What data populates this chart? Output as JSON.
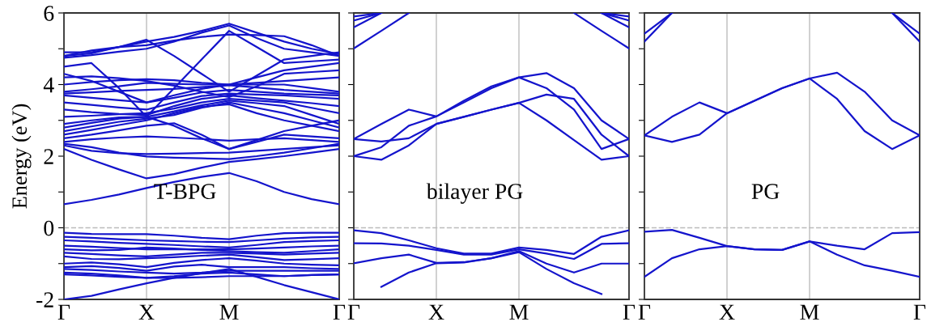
{
  "chart_data": [
    {
      "type": "line",
      "ylabel": "Energy (eV)",
      "annotations": [
        "T-BPG"
      ],
      "grid": "x",
      "marker": "none",
      "line_style": "solid",
      "categories": [
        "Γ",
        null,
        null,
        "X",
        null,
        null,
        "M",
        null,
        null,
        null,
        "Γ"
      ],
      "ylim": [
        -2,
        6
      ],
      "yticks": [
        -2,
        {
          "value": -1,
          "label": null
        },
        0,
        {
          "value": 1,
          "label": null
        },
        2,
        {
          "value": 3,
          "label": null
        },
        4,
        {
          "value": 5,
          "label": null
        },
        6
      ],
      "ref_lines": [
        {
          "axis": "y",
          "value": 0,
          "label": null,
          "color": "#bbbbbb",
          "line_style": "dashed"
        }
      ],
      "series": [
        {
          "color": "#1414cc",
          "values": [
            0.66,
            0.78,
            0.93,
            1.11,
            1.28,
            1.42,
            1.53,
            1.3,
            1.0,
            0.8,
            0.66
          ]
        },
        {
          "color": "#1414cc",
          "values": [
            2.2,
            1.9,
            1.63,
            1.38,
            1.5,
            1.68,
            1.84,
            1.92,
            2.0,
            2.1,
            2.2
          ]
        },
        {
          "color": "#1414cc",
          "values": [
            2.3,
            2.15,
            2.08,
            2.06,
            2.07,
            2.09,
            2.1,
            2.15,
            2.2,
            2.25,
            2.3
          ]
        },
        {
          "color": "#1414cc",
          "values": [
            2.35,
            2.25,
            2.1,
            1.99,
            1.96,
            1.94,
            1.92,
            2.0,
            2.1,
            2.22,
            2.35
          ]
        },
        {
          "color": "#1414cc",
          "values": [
            2.4,
            2.47,
            2.52,
            2.55,
            2.52,
            2.48,
            2.43,
            2.47,
            2.5,
            2.45,
            2.4
          ]
        },
        {
          "color": "#1414cc",
          "values": [
            2.5,
            2.6,
            2.72,
            2.85,
            2.92,
            2.6,
            2.2,
            2.4,
            2.6,
            2.55,
            2.5
          ]
        },
        {
          "color": "#1414cc",
          "values": [
            2.6,
            2.73,
            2.87,
            3.0,
            3.2,
            3.38,
            3.45,
            3.2,
            3.0,
            2.85,
            2.7
          ]
        },
        {
          "color": "#1414cc",
          "values": [
            2.7,
            2.83,
            2.96,
            3.05,
            3.15,
            3.35,
            3.5,
            3.35,
            3.2,
            3.0,
            2.8
          ]
        },
        {
          "color": "#1414cc",
          "values": [
            2.8,
            2.93,
            3.05,
            3.1,
            3.25,
            3.42,
            3.55,
            3.48,
            3.4,
            3.15,
            2.9
          ]
        },
        {
          "color": "#1414cc",
          "values": [
            2.9,
            3.0,
            3.08,
            3.1,
            2.85,
            2.5,
            2.2,
            2.45,
            2.7,
            2.85,
            3.0
          ]
        },
        {
          "color": "#1414cc",
          "values": [
            3.1,
            3.13,
            3.17,
            3.2,
            3.33,
            3.5,
            3.6,
            3.55,
            3.5,
            3.35,
            3.2
          ]
        },
        {
          "color": "#1414cc",
          "values": [
            3.3,
            3.23,
            3.18,
            3.15,
            3.4,
            3.6,
            3.7,
            3.62,
            3.55,
            3.48,
            3.4
          ]
        },
        {
          "color": "#1414cc",
          "values": [
            3.5,
            3.43,
            3.36,
            3.3,
            3.5,
            3.68,
            3.75,
            3.72,
            3.7,
            3.65,
            3.6
          ]
        },
        {
          "color": "#1414cc",
          "values": [
            3.7,
            3.63,
            3.56,
            3.5,
            3.63,
            3.78,
            3.85,
            3.8,
            3.75,
            3.72,
            3.7
          ]
        },
        {
          "color": "#1414cc",
          "values": [
            3.75,
            3.78,
            3.82,
            3.85,
            3.88,
            3.93,
            3.98,
            3.92,
            3.85,
            3.8,
            3.75
          ]
        },
        {
          "color": "#1414cc",
          "values": [
            3.8,
            3.87,
            3.95,
            4.05,
            4.02,
            4.0,
            4.0,
            4.0,
            4.0,
            3.9,
            3.8
          ]
        },
        {
          "color": "#1414cc",
          "values": [
            4.0,
            4.07,
            4.12,
            4.15,
            4.12,
            4.05,
            4.0,
            4.05,
            4.1,
            4.15,
            4.2
          ]
        },
        {
          "color": "#1414cc",
          "values": [
            4.2,
            4.23,
            4.18,
            4.1,
            3.97,
            3.8,
            3.65,
            3.95,
            4.3,
            4.35,
            4.4
          ]
        },
        {
          "color": "#1414cc",
          "values": [
            4.3,
            4.1,
            3.8,
            3.5,
            3.7,
            3.88,
            4.0,
            4.2,
            4.4,
            4.5,
            4.6
          ]
        },
        {
          "color": "#1414cc",
          "values": [
            4.5,
            4.6,
            3.9,
            3.1,
            3.9,
            4.7,
            5.5,
            5.05,
            4.6,
            4.65,
            4.7
          ]
        },
        {
          "color": "#1414cc",
          "values": [
            4.75,
            4.82,
            4.92,
            5.0,
            5.2,
            5.45,
            5.65,
            5.3,
            5.0,
            4.9,
            4.8
          ]
        },
        {
          "color": "#1414cc",
          "values": [
            4.8,
            4.87,
            5.05,
            5.2,
            5.33,
            5.5,
            5.7,
            5.45,
            5.2,
            5.0,
            4.85
          ]
        },
        {
          "color": "#1414cc",
          "values": [
            4.9,
            4.9,
            5.05,
            5.25,
            4.8,
            4.3,
            3.8,
            4.25,
            4.7,
            4.8,
            4.9
          ]
        },
        {
          "color": "#1414cc",
          "values": [
            4.8,
            4.95,
            5.05,
            5.1,
            5.23,
            5.33,
            5.4,
            5.38,
            5.35,
            5.1,
            4.8
          ]
        },
        {
          "color": "#1414cc",
          "values": [
            -0.14,
            -0.17,
            -0.18,
            -0.18,
            -0.22,
            -0.28,
            -0.32,
            -0.22,
            -0.15,
            -0.14,
            -0.14
          ]
        },
        {
          "color": "#1414cc",
          "values": [
            -0.25,
            -0.28,
            -0.32,
            -0.35,
            -0.37,
            -0.39,
            -0.4,
            -0.35,
            -0.3,
            -0.27,
            -0.25
          ]
        },
        {
          "color": "#1414cc",
          "values": [
            -0.35,
            -0.38,
            -0.42,
            -0.45,
            -0.48,
            -0.52,
            -0.55,
            -0.48,
            -0.4,
            -0.37,
            -0.35
          ]
        },
        {
          "color": "#1414cc",
          "values": [
            -0.5,
            -0.53,
            -0.57,
            -0.6,
            -0.6,
            -0.6,
            -0.6,
            -0.58,
            -0.55,
            -0.52,
            -0.5
          ]
        },
        {
          "color": "#1414cc",
          "values": [
            -0.6,
            -0.63,
            -0.62,
            -0.55,
            -0.58,
            -0.62,
            -0.65,
            -0.68,
            -0.7,
            -0.65,
            -0.6
          ]
        },
        {
          "color": "#1414cc",
          "values": [
            -0.7,
            -0.73,
            -0.77,
            -0.8,
            -0.75,
            -0.7,
            -0.7,
            -0.72,
            -0.75,
            -0.72,
            -0.7
          ]
        },
        {
          "color": "#1414cc",
          "values": [
            -0.8,
            -0.87,
            -0.88,
            -0.85,
            -0.82,
            -0.78,
            -0.75,
            -0.82,
            -0.9,
            -0.88,
            -0.85
          ]
        },
        {
          "color": "#1414cc",
          "values": [
            -1.0,
            -0.97,
            -1.02,
            -1.1,
            -0.98,
            -0.9,
            -0.85,
            -0.92,
            -1.0,
            -1.03,
            -1.05
          ]
        },
        {
          "color": "#1414cc",
          "values": [
            -1.1,
            -1.07,
            -1.12,
            -1.2,
            -1.08,
            -1.03,
            -1.1,
            -1.1,
            -1.1,
            -1.13,
            -1.15
          ]
        },
        {
          "color": "#1414cc",
          "values": [
            -1.15,
            -1.18,
            -1.22,
            -1.25,
            -1.28,
            -1.25,
            -1.2,
            -1.2,
            -1.2,
            -1.2,
            -1.2
          ]
        },
        {
          "color": "#1414cc",
          "values": [
            -1.25,
            -1.28,
            -1.33,
            -1.4,
            -1.35,
            -1.28,
            -1.25,
            -1.3,
            -1.35,
            -1.32,
            -1.3
          ]
        },
        {
          "color": "#1414cc",
          "values": [
            -1.3,
            -1.33,
            -1.37,
            -1.4,
            -1.4,
            -1.38,
            -1.35,
            -1.35,
            -1.35,
            -1.32,
            -1.3
          ]
        },
        {
          "color": "#1414cc",
          "values": [
            -2.0,
            -1.9,
            -1.72,
            -1.55,
            -1.4,
            -1.27,
            -1.15,
            -1.37,
            -1.6,
            -1.8,
            -2.0
          ]
        }
      ]
    },
    {
      "type": "line",
      "annotations": [
        "bilayer PG"
      ],
      "grid": "x",
      "marker": "none",
      "line_style": "solid",
      "tick_labels": "x",
      "categories": [
        "Γ",
        null,
        null,
        "X",
        null,
        null,
        "M",
        null,
        null,
        null,
        "Γ"
      ],
      "ylim": [
        -2,
        6
      ],
      "yticks": [
        -2,
        {
          "value": -1,
          "label": null
        },
        0,
        {
          "value": 1,
          "label": null
        },
        2,
        {
          "value": 3,
          "label": null
        },
        4,
        {
          "value": 5,
          "label": null
        },
        6
      ],
      "ref_lines": [
        {
          "axis": "y",
          "value": 0,
          "label": null,
          "color": "#bbbbbb",
          "line_style": "dashed"
        }
      ],
      "series": [
        {
          "color": "#1414cc",
          "values": [
            -0.07,
            -0.15,
            -0.35,
            -0.57,
            -0.72,
            -0.72,
            -0.55,
            -0.62,
            -0.73,
            -0.25,
            -0.07
          ]
        },
        {
          "color": "#1414cc",
          "values": [
            -0.43,
            -0.44,
            -0.5,
            -0.62,
            -0.75,
            -0.75,
            -0.6,
            -0.72,
            -0.87,
            -0.45,
            -0.43
          ]
        },
        {
          "color": "#1414cc",
          "values": [
            -0.99,
            -0.85,
            -0.75,
            -0.98,
            -0.96,
            -0.85,
            -0.65,
            -1.0,
            -1.25,
            -1.0,
            -1.0
          ]
        },
        {
          "color": "#1414cc",
          "values": [
            null,
            -1.65,
            -1.25,
            -0.99,
            -0.97,
            -0.85,
            -0.68,
            -1.15,
            -1.55,
            -1.85,
            null
          ]
        },
        {
          "color": "#1414cc",
          "values": [
            2.0,
            1.9,
            2.3,
            2.9,
            3.1,
            3.3,
            3.49,
            3.0,
            2.45,
            1.9,
            2.0
          ]
        },
        {
          "color": "#1414cc",
          "values": [
            2.0,
            2.25,
            2.85,
            3.11,
            3.55,
            3.95,
            4.2,
            4.32,
            3.9,
            3.0,
            2.48
          ]
        },
        {
          "color": "#1414cc",
          "values": [
            2.48,
            2.41,
            2.5,
            2.9,
            3.1,
            3.3,
            3.49,
            3.72,
            3.6,
            2.6,
            2.0
          ]
        },
        {
          "color": "#1414cc",
          "values": [
            2.48,
            2.9,
            3.3,
            3.11,
            3.5,
            3.9,
            4.2,
            3.9,
            3.3,
            2.2,
            2.48
          ]
        },
        {
          "color": "#1414cc",
          "values": [
            5.01,
            5.5,
            6,
            null,
            null,
            null,
            null,
            null,
            6,
            5.5,
            5.01
          ]
        },
        {
          "color": "#1414cc",
          "values": [
            5.6,
            6,
            null,
            null,
            null,
            null,
            null,
            null,
            null,
            6,
            5.6
          ]
        },
        {
          "color": "#1414cc",
          "values": [
            5.79,
            6,
            null,
            null,
            null,
            null,
            null,
            null,
            null,
            6,
            5.79
          ]
        },
        {
          "color": "#1414cc",
          "values": [
            5.9,
            6,
            null,
            null,
            null,
            null,
            null,
            null,
            null,
            6,
            5.9
          ]
        }
      ]
    },
    {
      "type": "line",
      "annotations": [
        "PG"
      ],
      "grid": "x",
      "marker": "none",
      "line_style": "solid",
      "tick_labels": "x",
      "categories": [
        "Γ",
        null,
        null,
        "X",
        null,
        null,
        "M",
        null,
        null,
        null,
        "Γ"
      ],
      "ylim": [
        -2,
        6
      ],
      "yticks": [
        -2,
        {
          "value": -1,
          "label": null
        },
        0,
        {
          "value": 1,
          "label": null
        },
        2,
        {
          "value": 3,
          "label": null
        },
        4,
        {
          "value": 5,
          "label": null
        },
        6
      ],
      "ref_lines": [
        {
          "axis": "y",
          "value": 0,
          "label": null,
          "color": "#bbbbbb",
          "line_style": "dashed"
        }
      ],
      "series": [
        {
          "color": "#1414cc",
          "values": [
            -0.11,
            -0.06,
            -0.28,
            -0.51,
            -0.6,
            -0.62,
            -0.38,
            -0.5,
            -0.6,
            -0.15,
            -0.12
          ]
        },
        {
          "color": "#1414cc",
          "values": [
            -1.37,
            -0.85,
            -0.6,
            -0.51,
            -0.6,
            -0.62,
            -0.38,
            -0.75,
            -1.05,
            -1.2,
            -1.37
          ]
        },
        {
          "color": "#1414cc",
          "values": [
            2.58,
            3.1,
            3.5,
            3.2,
            3.55,
            3.9,
            4.17,
            4.33,
            3.8,
            3.0,
            2.58
          ]
        },
        {
          "color": "#1414cc",
          "values": [
            2.58,
            2.4,
            2.6,
            3.2,
            3.55,
            3.9,
            4.17,
            3.6,
            2.7,
            2.2,
            2.58
          ]
        },
        {
          "color": "#1414cc",
          "values": [
            5.42,
            6,
            null,
            null,
            null,
            null,
            null,
            null,
            null,
            6,
            5.42
          ]
        },
        {
          "color": "#1414cc",
          "values": [
            5.2,
            6,
            null,
            null,
            null,
            null,
            null,
            null,
            null,
            6,
            5.2
          ]
        }
      ]
    }
  ]
}
